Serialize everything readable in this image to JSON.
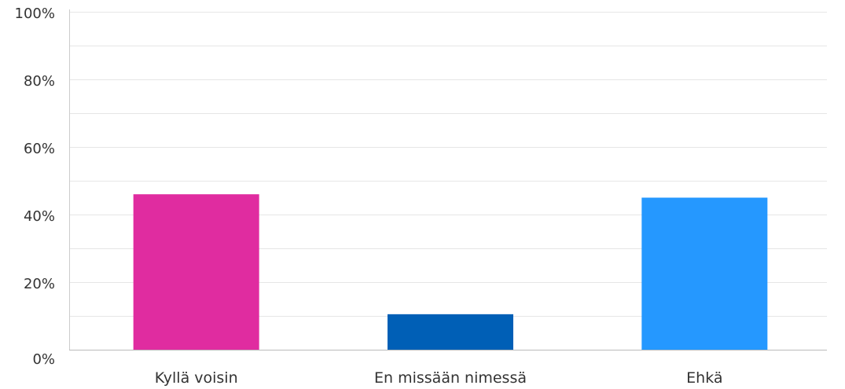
{
  "chart_data": {
    "type": "bar",
    "categories": [
      "Kyllä voisin",
      "En missään nimessä",
      "Ehkä"
    ],
    "values": [
      46,
      10.5,
      45
    ],
    "colors": [
      "#e02ca0",
      "#005fb6",
      "#2598ff"
    ],
    "ylim": [
      0,
      100
    ],
    "yticks": [
      0,
      20,
      40,
      60,
      80,
      100
    ],
    "ytick_labels": [
      "0%",
      "20%",
      "40%",
      "60%",
      "80%",
      "100%"
    ],
    "grid": true,
    "grid_minor": true,
    "legend": "none"
  }
}
